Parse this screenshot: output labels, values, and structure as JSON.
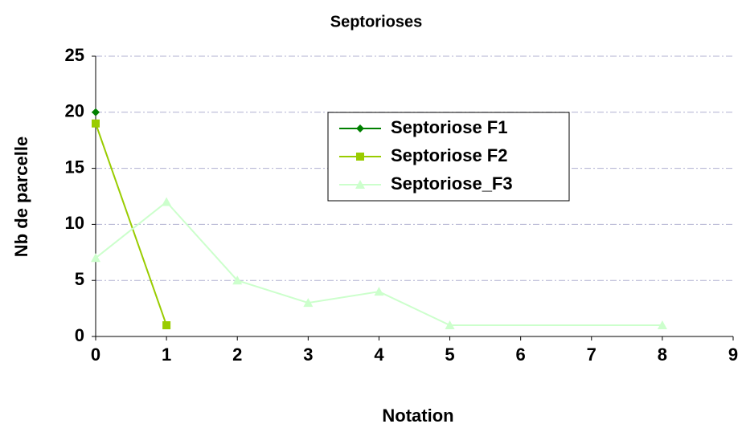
{
  "chart_data": {
    "type": "line",
    "title": "Septorioses",
    "x_label": "Notation",
    "y_label": "Nb de parcelle",
    "xlim": [
      0,
      9
    ],
    "xticks": [
      0,
      1,
      2,
      3,
      4,
      5,
      6,
      7,
      8,
      9
    ],
    "ylim": [
      0,
      25
    ],
    "yticks": [
      0,
      5,
      10,
      15,
      20,
      25
    ],
    "grid": true,
    "legend": "upper right",
    "series": [
      {
        "name": "Septoriose F1",
        "color": "#008000",
        "marker": "diamond",
        "x": [
          0
        ],
        "values": [
          20
        ]
      },
      {
        "name": "Septoriose F2",
        "color": "#99cc00",
        "marker": "square",
        "x": [
          0,
          1
        ],
        "values": [
          19,
          1
        ]
      },
      {
        "name": "Septoriose_F3",
        "color": "#ccffcc",
        "marker": "triangle",
        "x": [
          0,
          1,
          2,
          3,
          4,
          5,
          8
        ],
        "values": [
          7,
          12,
          5,
          3,
          4,
          1,
          1
        ]
      }
    ]
  }
}
